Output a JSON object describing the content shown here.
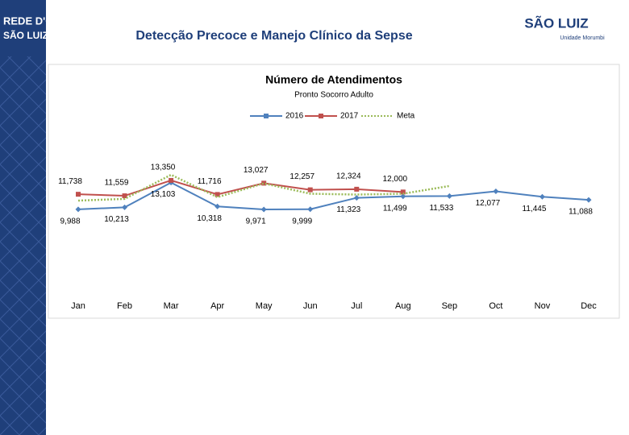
{
  "header": {
    "title": "Detecção Precoce e Manejo Clínico da Sepse",
    "logo_left": [
      "REDE D'OR",
      "SÃO LUIZ"
    ],
    "logo_right": "SÃO LUIZ",
    "logo_right_sub": "Unidade Morumbi"
  },
  "chart_data": {
    "type": "line",
    "title": "Número de Atendimentos",
    "subtitle": "Pronto Socorro Adulto",
    "categories": [
      "Jan",
      "Feb",
      "Mar",
      "Apr",
      "May",
      "Jun",
      "Jul",
      "Aug",
      "Sep",
      "Oct",
      "Nov",
      "Dec"
    ],
    "series": [
      {
        "name": "2016",
        "color": "#4f81bd",
        "values": [
          9988,
          10213,
          13103,
          10318,
          9971,
          9999,
          11323,
          11499,
          11533,
          12077,
          11445,
          11088
        ],
        "value_labels": [
          "9,988",
          "10,213",
          "13,103",
          "10,318",
          "9,971",
          "9,999",
          "11,323",
          "11,499",
          "11,533",
          "12,077",
          "11,445",
          "11,088"
        ]
      },
      {
        "name": "2017",
        "color": "#c0504d",
        "values": [
          11738,
          11559,
          13350,
          11716,
          13027,
          12257,
          12324,
          12000,
          null,
          null,
          null,
          null
        ],
        "value_labels": [
          "11,738",
          "11,559",
          "13,350",
          "11,716",
          "13,027",
          "12,257",
          "12,324",
          "12,000",
          null,
          null,
          null,
          null
        ]
      },
      {
        "name": "Meta",
        "color": "#9bbb59",
        "dashed": true,
        "values": [
          11000,
          11200,
          14000,
          11400,
          13000,
          11800,
          11700,
          11800,
          12700,
          null,
          null,
          null
        ]
      }
    ]
  }
}
